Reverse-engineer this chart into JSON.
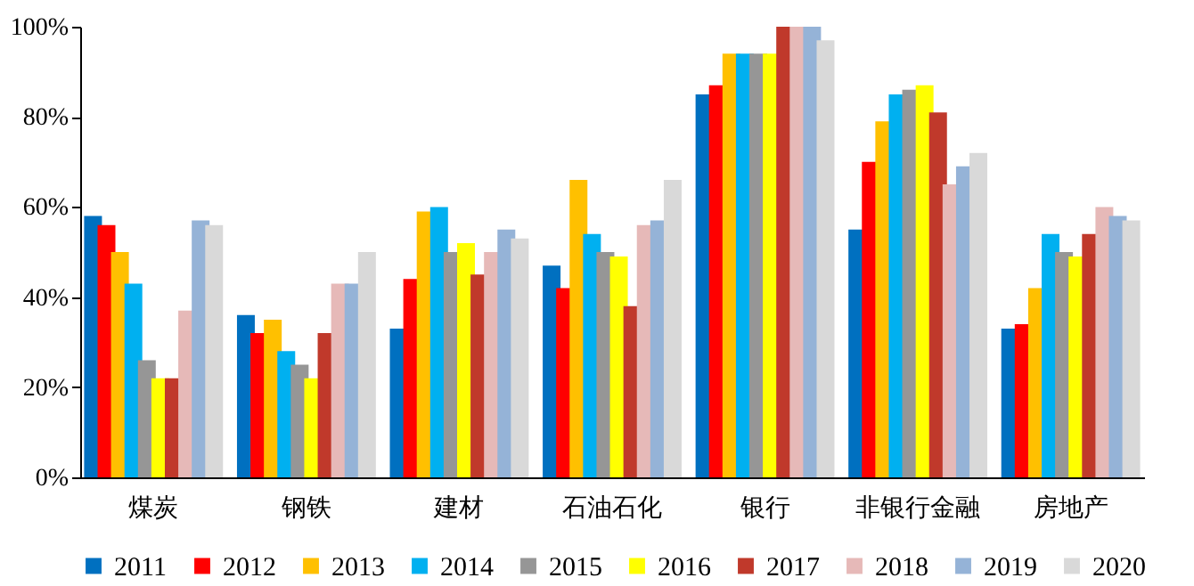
{
  "chart_data": {
    "type": "bar",
    "categories": [
      "煤炭",
      "钢铁",
      "建材",
      "石油石化",
      "银行",
      "非银行金融",
      "房地产"
    ],
    "series": [
      {
        "name": "2011",
        "color": "#0070c0",
        "values": [
          58,
          36,
          33,
          47,
          85,
          55,
          33
        ]
      },
      {
        "name": "2012",
        "color": "#ff0000",
        "values": [
          56,
          32,
          44,
          42,
          87,
          70,
          34
        ]
      },
      {
        "name": "2013",
        "color": "#ffc000",
        "values": [
          50,
          35,
          59,
          66,
          94,
          79,
          42
        ]
      },
      {
        "name": "2014",
        "color": "#00b0f0",
        "values": [
          43,
          28,
          60,
          54,
          94,
          85,
          54
        ]
      },
      {
        "name": "2015",
        "color": "#969696",
        "values": [
          26,
          25,
          50,
          50,
          94,
          86,
          50
        ]
      },
      {
        "name": "2016",
        "color": "#ffff00",
        "values": [
          22,
          22,
          52,
          49,
          94,
          87,
          49
        ]
      },
      {
        "name": "2017",
        "color": "#c0392b",
        "values": [
          22,
          32,
          45,
          38,
          100,
          81,
          54
        ]
      },
      {
        "name": "2018",
        "color": "#e6b9b8",
        "values": [
          37,
          43,
          50,
          56,
          100,
          65,
          60
        ]
      },
      {
        "name": "2019",
        "color": "#95b3d7",
        "values": [
          57,
          43,
          55,
          57,
          100,
          69,
          58
        ]
      },
      {
        "name": "2020",
        "color": "#d9d9d9",
        "values": [
          56,
          50,
          53,
          66,
          97,
          72,
          57
        ]
      }
    ],
    "ylim": [
      0,
      100
    ],
    "yticks": [
      {
        "value": 0,
        "label": "0%"
      },
      {
        "value": 20,
        "label": "20%"
      },
      {
        "value": 40,
        "label": "40%"
      },
      {
        "value": 60,
        "label": "60%"
      },
      {
        "value": 80,
        "label": "80%"
      },
      {
        "value": 100,
        "label": "100%"
      }
    ],
    "grid": false,
    "legend": "bottom"
  }
}
